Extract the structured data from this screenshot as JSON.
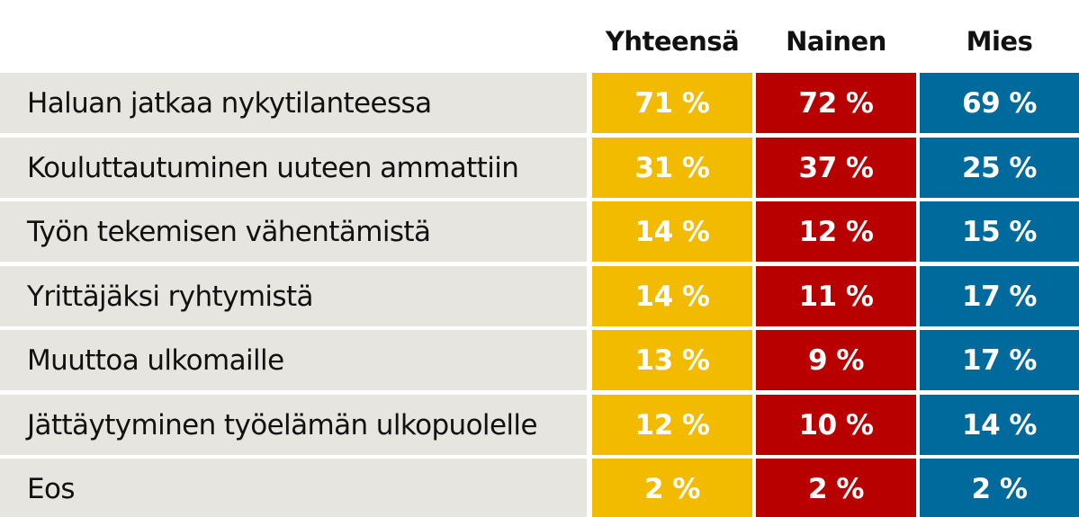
{
  "chart_data": {
    "type": "table",
    "columns": [
      "Yhteensä",
      "Nainen",
      "Mies"
    ],
    "colors": {
      "Yhteensä": "#f2bb00",
      "Nainen": "#b80000",
      "Mies": "#006a9c",
      "label_background": "#e6e5e0"
    },
    "rows": [
      {
        "label": "Haluan jatkaa nykytilanteessa",
        "values": [
          71,
          72,
          69
        ],
        "display": [
          "71 %",
          "72 %",
          "69 %"
        ]
      },
      {
        "label": "Kouluttautuminen uuteen ammattiin",
        "values": [
          31,
          37,
          25
        ],
        "display": [
          "31 %",
          "37 %",
          "25 %"
        ]
      },
      {
        "label": "Työn tekemisen vähentämistä",
        "values": [
          14,
          12,
          15
        ],
        "display": [
          "14 %",
          "12 %",
          "15 %"
        ]
      },
      {
        "label": "Yrittäjäksi ryhtymistä",
        "values": [
          14,
          11,
          17
        ],
        "display": [
          "14 %",
          "11 %",
          "17 %"
        ]
      },
      {
        "label": "Muuttoa ulkomaille",
        "values": [
          13,
          9,
          17
        ],
        "display": [
          "13 %",
          "9 %",
          "17 %"
        ]
      },
      {
        "label": "Jättäytyminen työelämän ulkopuolelle",
        "values": [
          12,
          10,
          14
        ],
        "display": [
          "12 %",
          "10 %",
          "14 %"
        ]
      },
      {
        "label": "Eos",
        "values": [
          2,
          2,
          2
        ],
        "display": [
          "2 %",
          "2 %",
          "2 %"
        ]
      }
    ]
  }
}
